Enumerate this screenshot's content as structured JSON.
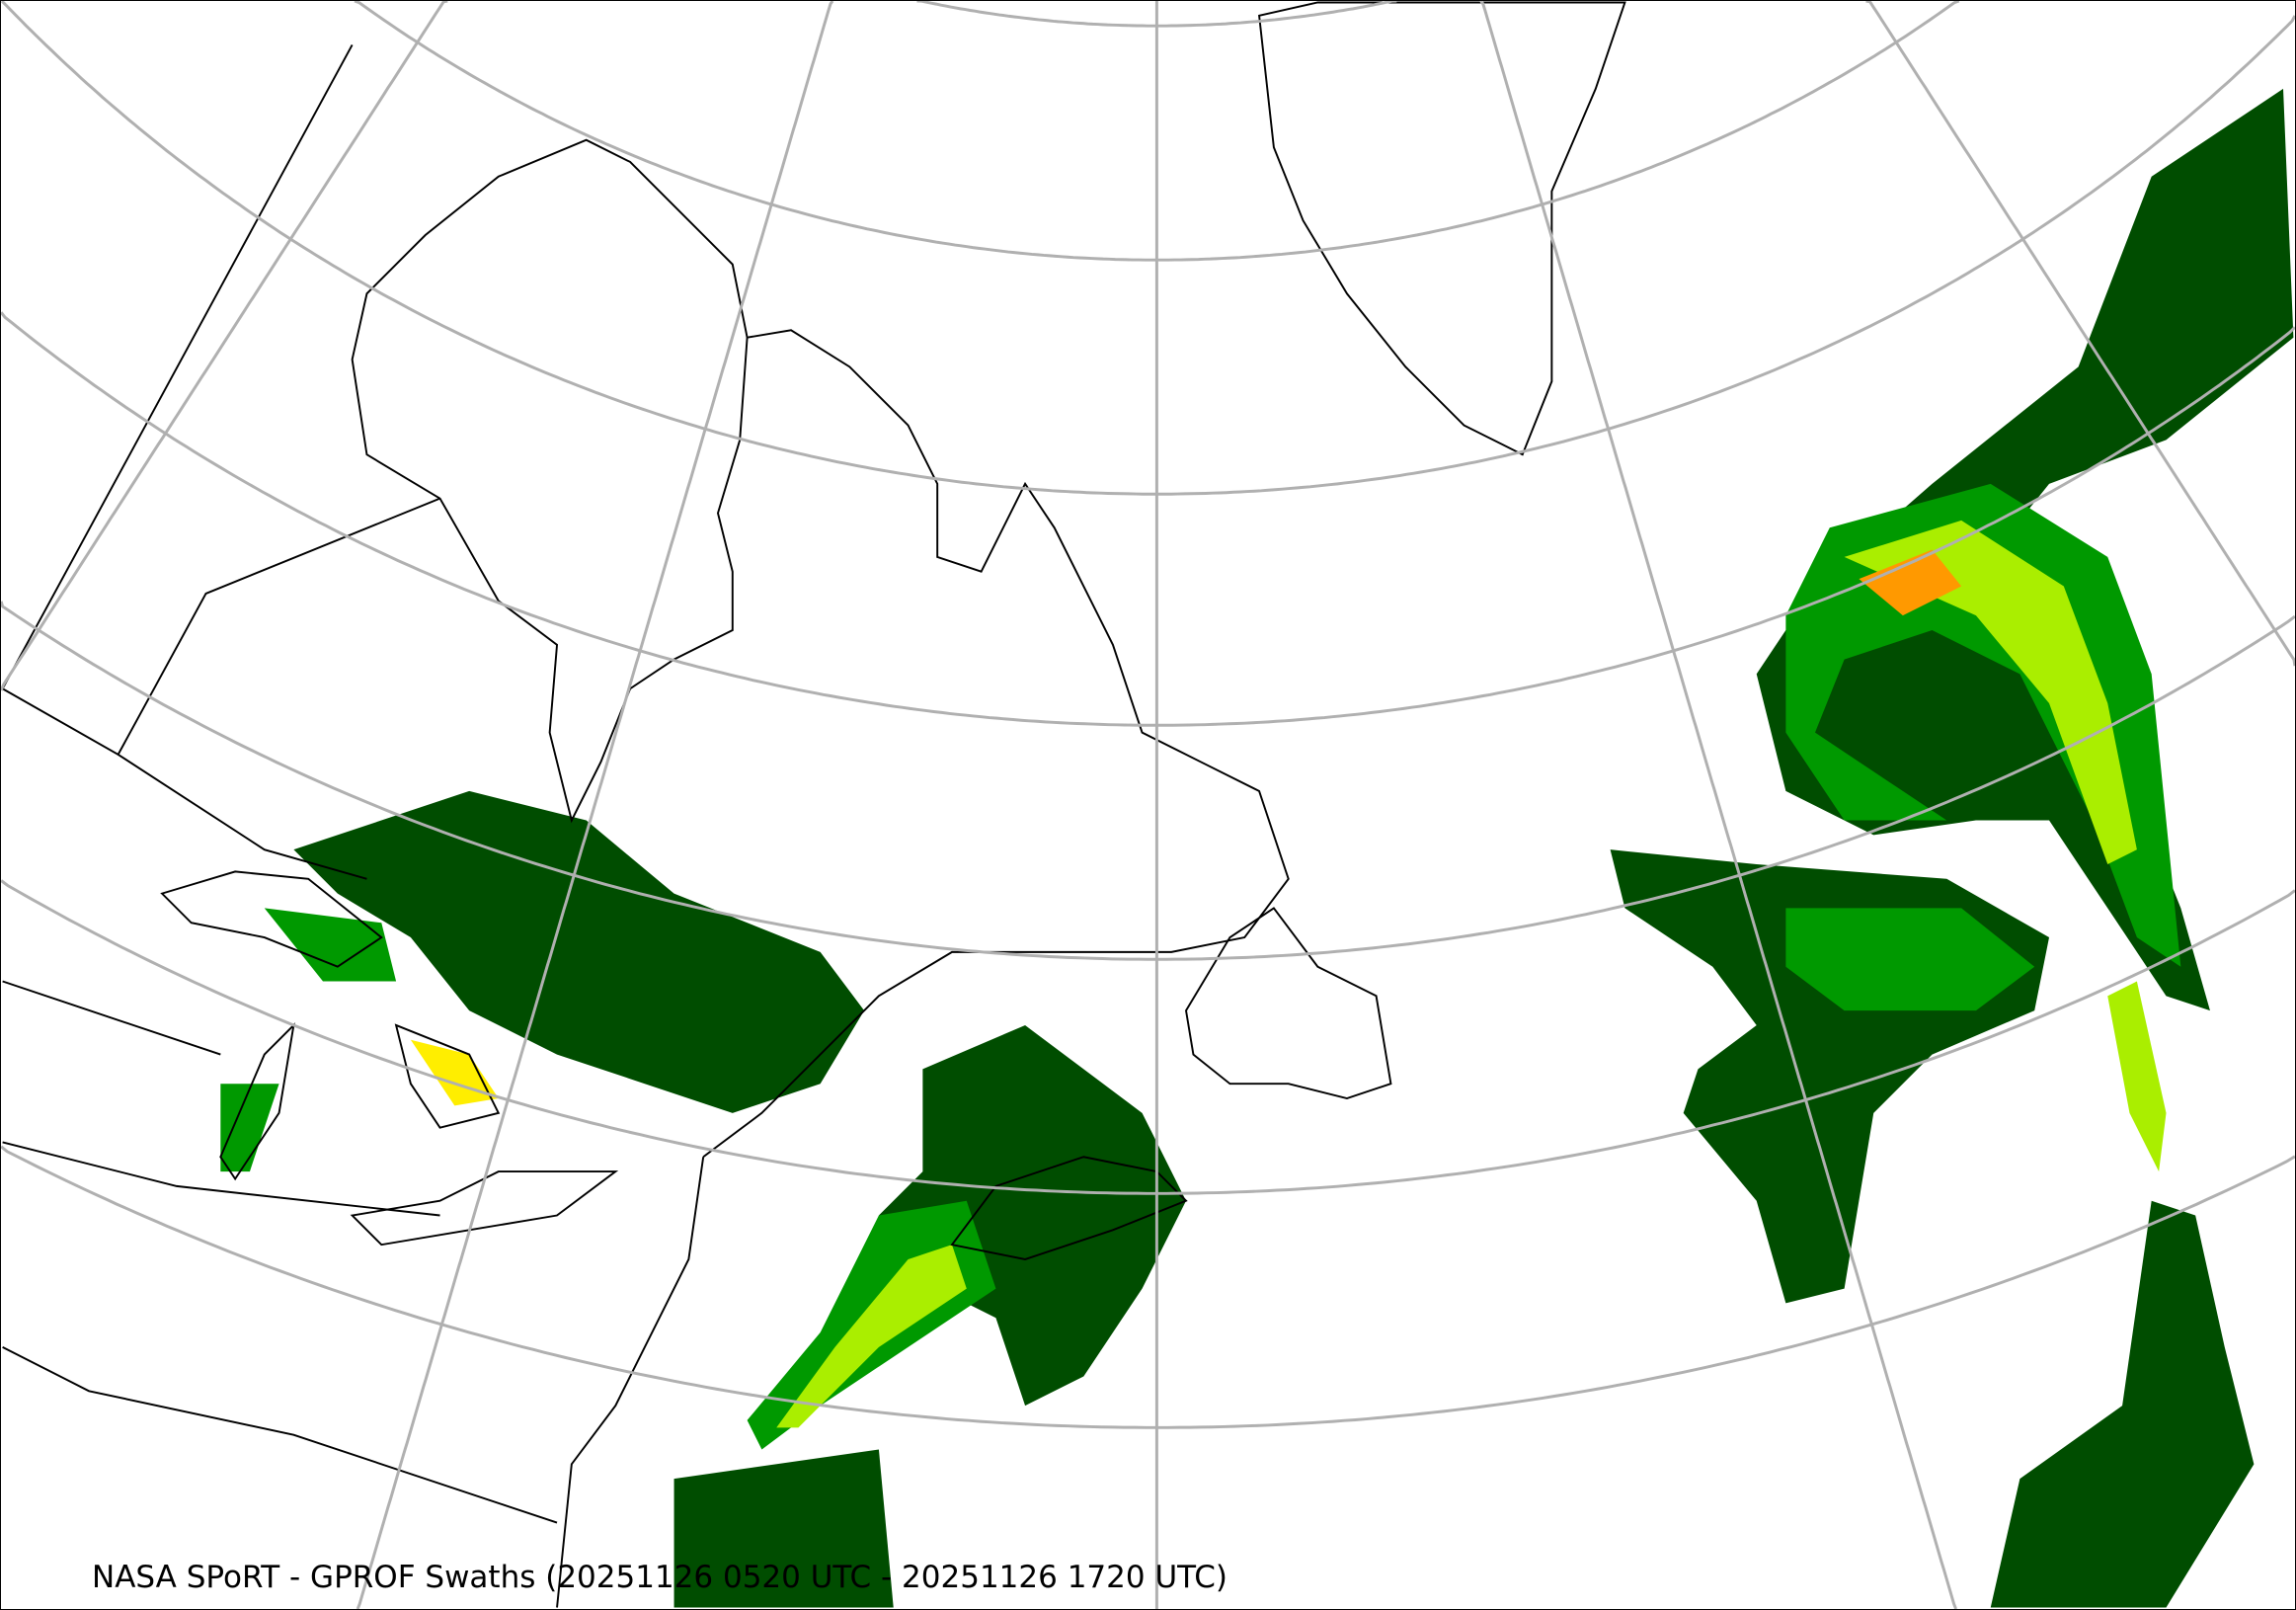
{
  "caption": "NASA SPoRT - GPROF Swaths (20251126 0520 UTC - 20251126 1720 UTC)",
  "colors": {
    "graticule": "#b0b0b0",
    "coastline": "#000000",
    "precip_light": "#004d00",
    "precip_moderate": "#009900",
    "precip_bright": "#00ee00",
    "precip_yellowgreen": "#aaee00",
    "precip_yellow": "#ffee00",
    "precip_orange": "#ff9900",
    "precip_red": "#ee2200"
  }
}
